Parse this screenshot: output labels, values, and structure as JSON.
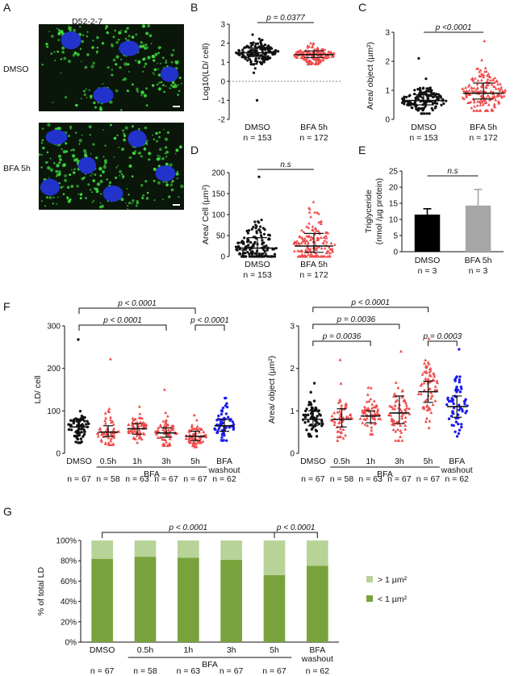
{
  "panel_letters": [
    "A",
    "B",
    "C",
    "D",
    "E",
    "F",
    "G"
  ],
  "panel_a": {
    "title": "D52-2-7",
    "rows": [
      {
        "label": "DMSO"
      },
      {
        "label": "BFA 5h"
      }
    ],
    "colors": {
      "background": "#0a160a",
      "ld": "#3fdc3f",
      "nucleus": "#2233cc"
    }
  },
  "chart_data": [
    {
      "id": "B",
      "type": "scatter",
      "ylabel": "Log10(LD/ cell)",
      "ylim": [
        -2,
        3
      ],
      "yticks": [
        -2,
        -1,
        0,
        1,
        2,
        3
      ],
      "reference_line": 0,
      "groups": [
        {
          "label": "DMSO",
          "n": "n = 153",
          "color": "#111111",
          "marker": "circle",
          "median": 1.5,
          "q1": 1.3,
          "q3": 1.75,
          "spread": 0.28,
          "min": -1.0,
          "max": 2.45,
          "count": 153
        },
        {
          "label": "BFA 5h",
          "n": "n = 172",
          "color": "#f04a4a",
          "marker": "triangle",
          "median": 1.4,
          "q1": 1.25,
          "q3": 1.6,
          "spread": 0.22,
          "min": 0.9,
          "max": 2.0,
          "count": 172
        }
      ],
      "comparisons": [
        {
          "from": 0,
          "to": 1,
          "text": "p = 0.0377"
        }
      ]
    },
    {
      "id": "C",
      "type": "scatter",
      "ylabel": "Area/ object (µm²)",
      "ylim": [
        0,
        3
      ],
      "yticks": [
        0,
        1,
        2,
        3
      ],
      "groups": [
        {
          "label": "DMSO",
          "n": "n = 153",
          "color": "#111111",
          "marker": "circle",
          "median": 0.65,
          "q1": 0.5,
          "q3": 0.85,
          "spread": 0.22,
          "min": 0.2,
          "max": 2.1,
          "count": 153
        },
        {
          "label": "BFA 5h",
          "n": "n = 172",
          "color": "#f04a4a",
          "marker": "triangle",
          "median": 0.9,
          "q1": 0.7,
          "q3": 1.25,
          "spread": 0.4,
          "min": 0.3,
          "max": 2.7,
          "count": 172
        }
      ],
      "comparisons": [
        {
          "from": 0,
          "to": 1,
          "text": "p <0.0001"
        }
      ]
    },
    {
      "id": "D",
      "type": "scatter",
      "ylabel": "Area/ Cell (µm²)",
      "ylim": [
        0,
        200
      ],
      "yticks": [
        0,
        50,
        100,
        150,
        200
      ],
      "groups": [
        {
          "label": "DMSO",
          "n": "n = 153",
          "color": "#111111",
          "marker": "circle",
          "median": 20,
          "q1": 8,
          "q3": 45,
          "spread": 30,
          "min": 0,
          "max": 190,
          "count": 153
        },
        {
          "label": "BFA 5h",
          "n": "n = 172",
          "color": "#f04a4a",
          "marker": "triangle",
          "median": 25,
          "q1": 10,
          "q3": 55,
          "spread": 32,
          "min": 0,
          "max": 130,
          "count": 172
        }
      ],
      "comparisons": [
        {
          "from": 0,
          "to": 1,
          "text": "n.s"
        }
      ]
    },
    {
      "id": "E",
      "type": "bar",
      "ylabel_lines": [
        "Triglyceride",
        "(nmol /µg protein)"
      ],
      "ylim": [
        0,
        25
      ],
      "yticks": [
        0,
        5,
        10,
        15,
        20,
        25
      ],
      "categories": [
        "DMSO",
        "BFA 5h"
      ],
      "n_labels": [
        "n = 3",
        "n = 3"
      ],
      "values": [
        11.5,
        14.3
      ],
      "errors": [
        1.8,
        5.0
      ],
      "colors": [
        "#000000",
        "#a6a6a6"
      ],
      "comparisons": [
        {
          "from": 0,
          "to": 1,
          "text": "n.s"
        }
      ]
    },
    {
      "id": "F1",
      "type": "scatter",
      "ylabel": "LD/ cell",
      "ylim": [
        0,
        300
      ],
      "yticks": [
        0,
        100,
        200,
        300
      ],
      "group_label": "BFA",
      "groups": [
        {
          "label": "DMSO",
          "n": "n = 67",
          "color": "#111111",
          "marker": "circle",
          "median": 62,
          "q1": 50,
          "q3": 80,
          "spread": 22,
          "min": 25,
          "max": 268,
          "count": 67
        },
        {
          "label": "0.5h",
          "n": "n = 58",
          "color": "#f04a4a",
          "marker": "triangle",
          "median": 50,
          "q1": 40,
          "q3": 65,
          "spread": 20,
          "min": 20,
          "max": 222,
          "count": 58
        },
        {
          "label": "1h",
          "n": "n = 63",
          "color": "#f04a4a",
          "marker": "triangle",
          "median": 58,
          "q1": 45,
          "q3": 70,
          "spread": 16,
          "min": 25,
          "max": 110,
          "count": 63
        },
        {
          "label": "3h",
          "n": "n = 67",
          "color": "#f04a4a",
          "marker": "triangle",
          "median": 48,
          "q1": 38,
          "q3": 60,
          "spread": 16,
          "min": 18,
          "max": 150,
          "count": 67
        },
        {
          "label": "5h",
          "n": "n = 67",
          "color": "#f04a4a",
          "marker": "triangle",
          "median": 40,
          "q1": 30,
          "q3": 52,
          "spread": 14,
          "min": 15,
          "max": 90,
          "count": 67
        },
        {
          "label": "BFA",
          "label2": "washout",
          "n": "n = 62",
          "color": "#1a1aee",
          "marker": "circle",
          "median": 65,
          "q1": 52,
          "q3": 80,
          "spread": 18,
          "min": 30,
          "max": 130,
          "count": 62
        }
      ],
      "bfa_span": [
        1,
        4
      ],
      "comparisons": [
        {
          "from": 0,
          "to": 4,
          "text": "p < 0.0001",
          "level": 2
        },
        {
          "from": 0,
          "to": 3,
          "text": "p < 0.0001",
          "level": 1
        },
        {
          "from": 4,
          "to": 5,
          "text": "p < 0.0001",
          "level": 1
        }
      ]
    },
    {
      "id": "F2",
      "type": "scatter",
      "ylabel": "Area/ object (µm²)",
      "ylim": [
        0,
        3
      ],
      "yticks": [
        0,
        1,
        2,
        3
      ],
      "group_label": "BFA",
      "groups": [
        {
          "label": "DMSO",
          "n": "n = 67",
          "color": "#111111",
          "marker": "circle",
          "median": 0.8,
          "q1": 0.65,
          "q3": 1.0,
          "spread": 0.22,
          "min": 0.4,
          "max": 1.65,
          "count": 67
        },
        {
          "label": "0.5h",
          "n": "n = 58",
          "color": "#f04a4a",
          "marker": "triangle",
          "median": 0.8,
          "q1": 0.62,
          "q3": 1.05,
          "spread": 0.3,
          "min": 0.3,
          "max": 2.2,
          "count": 58
        },
        {
          "label": "1h",
          "n": "n = 63",
          "color": "#f04a4a",
          "marker": "triangle",
          "median": 0.88,
          "q1": 0.72,
          "q3": 1.0,
          "spread": 0.2,
          "min": 0.45,
          "max": 1.55,
          "count": 63
        },
        {
          "label": "3h",
          "n": "n = 67",
          "color": "#f04a4a",
          "marker": "triangle",
          "median": 0.95,
          "q1": 0.7,
          "q3": 1.35,
          "spread": 0.35,
          "min": 0.3,
          "max": 2.4,
          "count": 67
        },
        {
          "label": "5h",
          "n": "n = 67",
          "color": "#f04a4a",
          "marker": "triangle",
          "median": 1.45,
          "q1": 1.2,
          "q3": 1.7,
          "spread": 0.38,
          "min": 0.6,
          "max": 2.7,
          "count": 67
        },
        {
          "label": "BFA",
          "label2": "washout",
          "n": "n = 62",
          "color": "#1a1aee",
          "marker": "circle",
          "median": 1.1,
          "q1": 0.85,
          "q3": 1.35,
          "spread": 0.32,
          "min": 0.4,
          "max": 2.45,
          "count": 62
        }
      ],
      "bfa_span": [
        1,
        4
      ],
      "comparisons": [
        {
          "from": 0,
          "to": 4,
          "text": "p < 0.0001",
          "level": 3
        },
        {
          "from": 0,
          "to": 3,
          "text": "p = 0.0036",
          "level": 2
        },
        {
          "from": 0,
          "to": 2,
          "text": "p = 0.0036",
          "level": 1
        },
        {
          "from": 4,
          "to": 5,
          "text": "p = 0.0003",
          "level": 1
        }
      ]
    },
    {
      "id": "G",
      "type": "bar",
      "stacked": true,
      "ylabel": "% of total LD",
      "ylim": [
        0,
        100
      ],
      "yticks": [
        "0%",
        "20%",
        "40%",
        "60%",
        "80%",
        "100%"
      ],
      "group_label": "BFA",
      "categories": [
        "DMSO",
        "0.5h",
        "1h",
        "3h",
        "5h",
        "BFA"
      ],
      "category_line2": [
        "",
        "",
        "",
        "",
        "",
        "washout"
      ],
      "n_labels": [
        "n = 67",
        "n = 58",
        "n = 63",
        "n = 67",
        "n = 67",
        "n = 62"
      ],
      "bfa_span": [
        1,
        4
      ],
      "series": [
        {
          "name": "< 1 µm²",
          "color": "#78a33c",
          "values": [
            82,
            84,
            83,
            81,
            66,
            75
          ]
        },
        {
          "name": "> 1 µm²",
          "color": "#b7d398",
          "values": [
            18,
            16,
            17,
            19,
            34,
            25
          ]
        }
      ],
      "legend": "right",
      "comparisons": [
        {
          "from": 0,
          "to": 4,
          "text": "p < 0.0001",
          "level": 1
        },
        {
          "from": 4,
          "to": 5,
          "text": "p < 0.0001",
          "level": 1
        }
      ]
    }
  ]
}
